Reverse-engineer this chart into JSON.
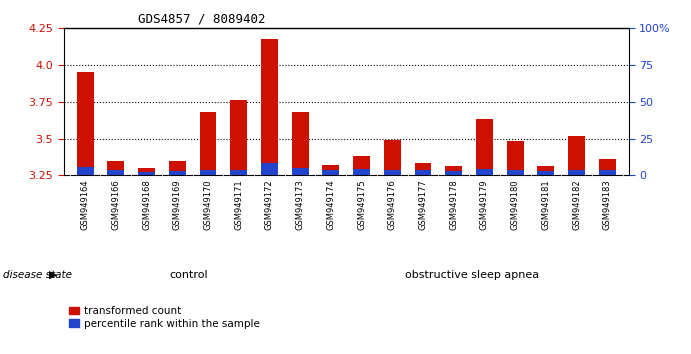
{
  "title": "GDS4857 / 8089402",
  "samples": [
    "GSM949164",
    "GSM949166",
    "GSM949168",
    "GSM949169",
    "GSM949170",
    "GSM949171",
    "GSM949172",
    "GSM949173",
    "GSM949174",
    "GSM949175",
    "GSM949176",
    "GSM949177",
    "GSM949178",
    "GSM949179",
    "GSM949180",
    "GSM949181",
    "GSM949182",
    "GSM949183"
  ],
  "red_values": [
    3.95,
    3.35,
    3.3,
    3.35,
    3.68,
    3.76,
    4.18,
    3.68,
    3.32,
    3.38,
    3.49,
    3.33,
    3.31,
    3.63,
    3.48,
    3.31,
    3.52,
    3.36
  ],
  "blue_percentiles": [
    5.5,
    3.5,
    2.5,
    3.0,
    3.5,
    3.5,
    8.0,
    5.0,
    3.5,
    4.5,
    3.5,
    3.5,
    3.0,
    4.5,
    3.5,
    3.0,
    3.5,
    3.5
  ],
  "ymin": 3.25,
  "ymax": 4.25,
  "yright_min": 0,
  "yright_max": 100,
  "yticks_left": [
    3.25,
    3.5,
    3.75,
    4.0,
    4.25
  ],
  "yticks_right": [
    0,
    25,
    50,
    75,
    100
  ],
  "yticks_right_labels": [
    "0",
    "25",
    "50",
    "75",
    "100%"
  ],
  "control_count": 8,
  "control_label": "control",
  "osa_label": "obstructive sleep apnea",
  "disease_state_label": "disease state",
  "legend_red": "transformed count",
  "legend_blue": "percentile rank within the sample",
  "bar_color_red": "#cc1100",
  "bar_color_blue": "#2244cc",
  "control_bg": "#ccffcc",
  "osa_bg": "#44cc44",
  "bar_width": 0.55,
  "baseline": 3.25,
  "xtick_bg": "#cccccc",
  "grid_yticks": [
    3.5,
    3.75,
    4.0
  ]
}
